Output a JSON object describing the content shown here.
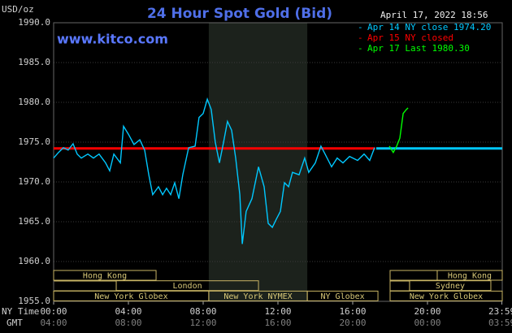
{
  "chart_data": {
    "type": "line",
    "title": "24 Hour Spot Gold (Bid)",
    "unit_label": "USD/oz",
    "timestamp": "April 17, 2022 18:56",
    "site": "www.kitco.com",
    "x_axis_label": "NY Time",
    "x2_axis_label": "GMT",
    "xlim": [
      0,
      24
    ],
    "xticks": [
      {
        "value": 0,
        "label": "00:00"
      },
      {
        "value": 4,
        "label": "04:00"
      },
      {
        "value": 8,
        "label": "08:00"
      },
      {
        "value": 12,
        "label": "12:00"
      },
      {
        "value": 16,
        "label": "16:00"
      },
      {
        "value": 20,
        "label": "20:00"
      },
      {
        "value": 23.98,
        "label": "23:59"
      }
    ],
    "x2ticks": [
      {
        "value": 0,
        "label": "04:00"
      },
      {
        "value": 4,
        "label": "08:00"
      },
      {
        "value": 8,
        "label": "12:00"
      },
      {
        "value": 12,
        "label": "16:00"
      },
      {
        "value": 16,
        "label": "20:00"
      },
      {
        "value": 20,
        "label": "00:00"
      },
      {
        "value": 23.98,
        "label": "03:59"
      }
    ],
    "ylim": [
      1955,
      1990
    ],
    "yticks": [
      {
        "value": 1955,
        "label": "1955.0"
      },
      {
        "value": 1960,
        "label": "1960.0"
      },
      {
        "value": 1965,
        "label": "1965.0"
      },
      {
        "value": 1970,
        "label": "1970.0"
      },
      {
        "value": 1975,
        "label": "1975.0"
      },
      {
        "value": 1980,
        "label": "1980.0"
      },
      {
        "value": 1985,
        "label": "1985.0"
      },
      {
        "value": 1990,
        "label": "1990.0"
      }
    ],
    "grid": true,
    "legend": "top-right",
    "series": [
      {
        "name": "Apr 14 NY close 1974.20",
        "color": "#00c8ff",
        "x": [
          0,
          0.26,
          0.52,
          0.78,
          1.04,
          1.26,
          1.48,
          1.83,
          2.13,
          2.43,
          2.78,
          3.0,
          3.22,
          3.57,
          3.74,
          4.0,
          4.3,
          4.61,
          4.87,
          5.09,
          5.3,
          5.61,
          5.83,
          6.04,
          6.26,
          6.48,
          6.7,
          6.91,
          7.22,
          7.57,
          7.78,
          8.0,
          8.22,
          8.43,
          8.65,
          8.87,
          9.09,
          9.3,
          9.52,
          9.74,
          9.96,
          10.09,
          10.3,
          10.61,
          10.96,
          11.26,
          11.48,
          11.7,
          11.91,
          12.13,
          12.35,
          12.57,
          12.78,
          13.13,
          13.43,
          13.65,
          14.0,
          14.3,
          14.52,
          14.87,
          15.17,
          15.48,
          15.83,
          16.26,
          16.61,
          16.91,
          17.17,
          17.2,
          17.26,
          24
        ],
        "values": [
          1973.0,
          1973.7,
          1974.3,
          1974.0,
          1974.8,
          1973.5,
          1973.0,
          1973.5,
          1973.0,
          1973.5,
          1972.4,
          1971.4,
          1973.5,
          1972.4,
          1977.0,
          1976.0,
          1974.7,
          1975.3,
          1974.0,
          1970.9,
          1968.4,
          1969.4,
          1968.4,
          1969.2,
          1968.4,
          1969.9,
          1967.9,
          1970.9,
          1974.3,
          1974.5,
          1978.1,
          1978.6,
          1980.4,
          1979.1,
          1975.0,
          1972.4,
          1975.0,
          1977.6,
          1976.5,
          1973.0,
          1968.4,
          1962.2,
          1966.3,
          1967.9,
          1971.9,
          1969.4,
          1964.8,
          1964.3,
          1965.3,
          1966.3,
          1969.9,
          1969.4,
          1971.2,
          1970.9,
          1973.0,
          1971.2,
          1972.4,
          1974.5,
          1973.5,
          1971.9,
          1973.0,
          1972.4,
          1973.2,
          1972.7,
          1973.5,
          1972.7,
          1974.3,
          null,
          1974.2,
          1974.2
        ]
      },
      {
        "name": "Apr 15 NY closed",
        "color": "#ff0000",
        "x": [
          0,
          17.2
        ],
        "values": [
          1974.2,
          1974.2
        ]
      },
      {
        "name": "Apr 17 Last 1980.30",
        "color": "#00ff00",
        "x": [
          17.96,
          18.17,
          18.35,
          18.52,
          18.7,
          18.87,
          18.96
        ],
        "values": [
          1974.5,
          1973.7,
          1974.5,
          1975.5,
          1978.6,
          1979.1,
          1979.3
        ]
      }
    ],
    "sessions": [
      {
        "name": "Hong Kong",
        "row": 1,
        "start": 0,
        "end": 5.48
      },
      {
        "name": "Hong Kong",
        "row": 1,
        "start": 20.52,
        "end": 24
      },
      {
        "name": "London",
        "row": 2,
        "start": 3.35,
        "end": 10.96
      },
      {
        "name": "Sydney",
        "row": 2,
        "start": 19.04,
        "end": 23.39
      },
      {
        "name": "New York Globex",
        "row": 3,
        "start": 0,
        "end": 8.3
      },
      {
        "name": "New York NYMEX",
        "row": 3,
        "start": 8.3,
        "end": 13.57,
        "shaded": true
      },
      {
        "name": "NY Globex",
        "row": 3,
        "start": 13.57,
        "end": 17.35
      },
      {
        "name": "New York Globex",
        "row": 3,
        "start": 18,
        "end": 24
      }
    ]
  }
}
